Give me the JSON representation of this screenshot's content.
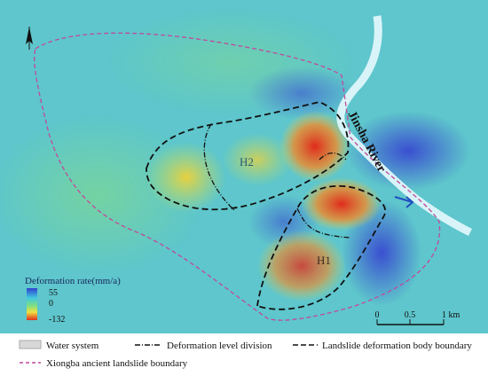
{
  "map": {
    "labels": {
      "river": "Jinsha River",
      "h2": "H2",
      "h1": "H1"
    },
    "colorbar": {
      "title": "Deformation rate(mm/a)",
      "ticks": [
        "55",
        "0",
        "-132"
      ]
    },
    "scale": {
      "ticks": [
        "0",
        "0.5",
        "1 km"
      ]
    },
    "legend": [
      "Water system",
      "Deformation level division",
      "Landslide deformation body boundary",
      "Xiongba ancient landslide boundary"
    ]
  }
}
